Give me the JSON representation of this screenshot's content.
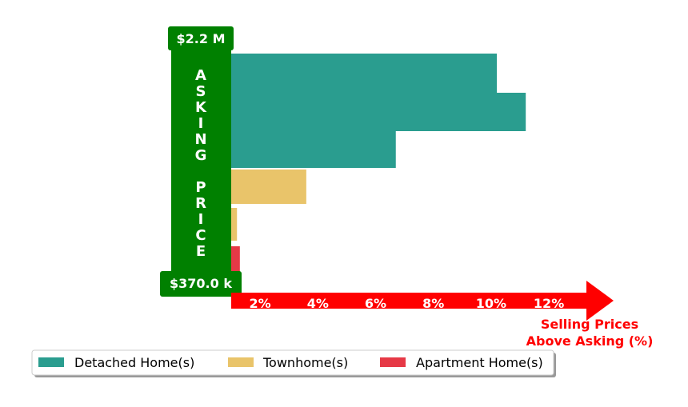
{
  "chart_data": {
    "type": "bar",
    "orientation": "horizontal",
    "xlabel_lines": [
      "Selling Prices",
      "Above Asking (%)"
    ],
    "ylabel": "ASKING PRICE",
    "y_top_label": "$2.2 M",
    "y_bottom_label": "$370.0 k",
    "x_ticks": [
      "2%",
      "4%",
      "6%",
      "8%",
      "10%",
      "12%"
    ],
    "x_tick_values": [
      2,
      4,
      6,
      8,
      10,
      12
    ],
    "xlim": [
      1.0,
      13.3
    ],
    "series": [
      {
        "name": "Detached Home(s)",
        "color": "#2a9d8f",
        "bars": [
          {
            "x": 10.2
          },
          {
            "x": 11.2
          },
          {
            "x": 6.7
          }
        ]
      },
      {
        "name": "Townhome(s)",
        "color": "#e9c46a",
        "bars": [
          {
            "x": 3.6
          },
          {
            "x": 1.2
          }
        ]
      },
      {
        "name": "Apartment Home(s)",
        "color": "#e63946",
        "bars": [
          {
            "x": 1.3
          }
        ]
      }
    ],
    "legend_position": "bottom-left",
    "colors": {
      "axis": "#ff0000",
      "ylabel_box": "#008000"
    }
  }
}
